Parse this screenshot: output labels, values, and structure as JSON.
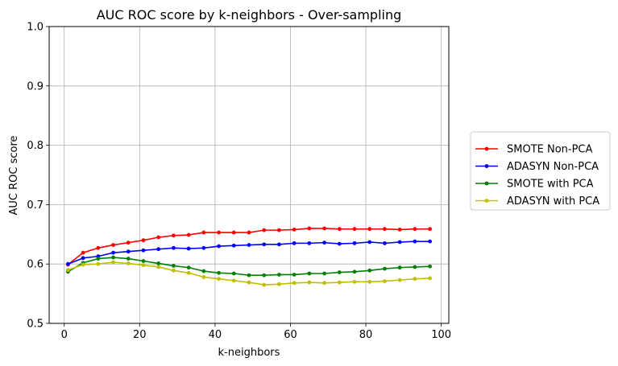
{
  "chart_data": {
    "type": "line",
    "title": "AUC ROC score by k-neighbors - Over-sampling",
    "xlabel": "k-neighbors",
    "ylabel": "AUC ROC score",
    "xlim": [
      -4,
      102
    ],
    "ylim": [
      0.5,
      1.0
    ],
    "xticks": [
      0,
      20,
      40,
      60,
      80,
      100
    ],
    "yticks": [
      0.5,
      0.6,
      0.7,
      0.8,
      0.9,
      1.0
    ],
    "grid": true,
    "legend_position": "right",
    "x": [
      1,
      5,
      9,
      13,
      17,
      21,
      25,
      29,
      33,
      37,
      41,
      45,
      49,
      53,
      57,
      61,
      65,
      69,
      73,
      77,
      81,
      85,
      89,
      93,
      97
    ],
    "series": [
      {
        "name": "SMOTE Non-PCA",
        "color": "#ff0000",
        "values": [
          0.599,
          0.619,
          0.627,
          0.632,
          0.636,
          0.64,
          0.645,
          0.648,
          0.649,
          0.653,
          0.653,
          0.653,
          0.653,
          0.657,
          0.657,
          0.658,
          0.66,
          0.66,
          0.659,
          0.659,
          0.659,
          0.659,
          0.658,
          0.659,
          0.659
        ]
      },
      {
        "name": "ADASYN Non-PCA",
        "color": "#0000ff",
        "values": [
          0.6,
          0.61,
          0.613,
          0.619,
          0.621,
          0.623,
          0.625,
          0.627,
          0.626,
          0.627,
          0.63,
          0.631,
          0.632,
          0.633,
          0.633,
          0.635,
          0.635,
          0.636,
          0.634,
          0.635,
          0.637,
          0.635,
          0.637,
          0.638,
          0.638
        ]
      },
      {
        "name": "SMOTE with PCA",
        "color": "#008000",
        "values": [
          0.587,
          0.602,
          0.609,
          0.611,
          0.609,
          0.605,
          0.601,
          0.597,
          0.594,
          0.588,
          0.585,
          0.584,
          0.581,
          0.581,
          0.582,
          0.582,
          0.584,
          0.584,
          0.586,
          0.587,
          0.589,
          0.592,
          0.594,
          0.595,
          0.596
        ]
      },
      {
        "name": "ADASYN with PCA",
        "color": "#bfbf00",
        "values": [
          0.59,
          0.599,
          0.6,
          0.603,
          0.601,
          0.598,
          0.595,
          0.589,
          0.585,
          0.578,
          0.575,
          0.572,
          0.569,
          0.565,
          0.566,
          0.568,
          0.569,
          0.568,
          0.569,
          0.57,
          0.57,
          0.571,
          0.573,
          0.575,
          0.576
        ]
      }
    ]
  }
}
